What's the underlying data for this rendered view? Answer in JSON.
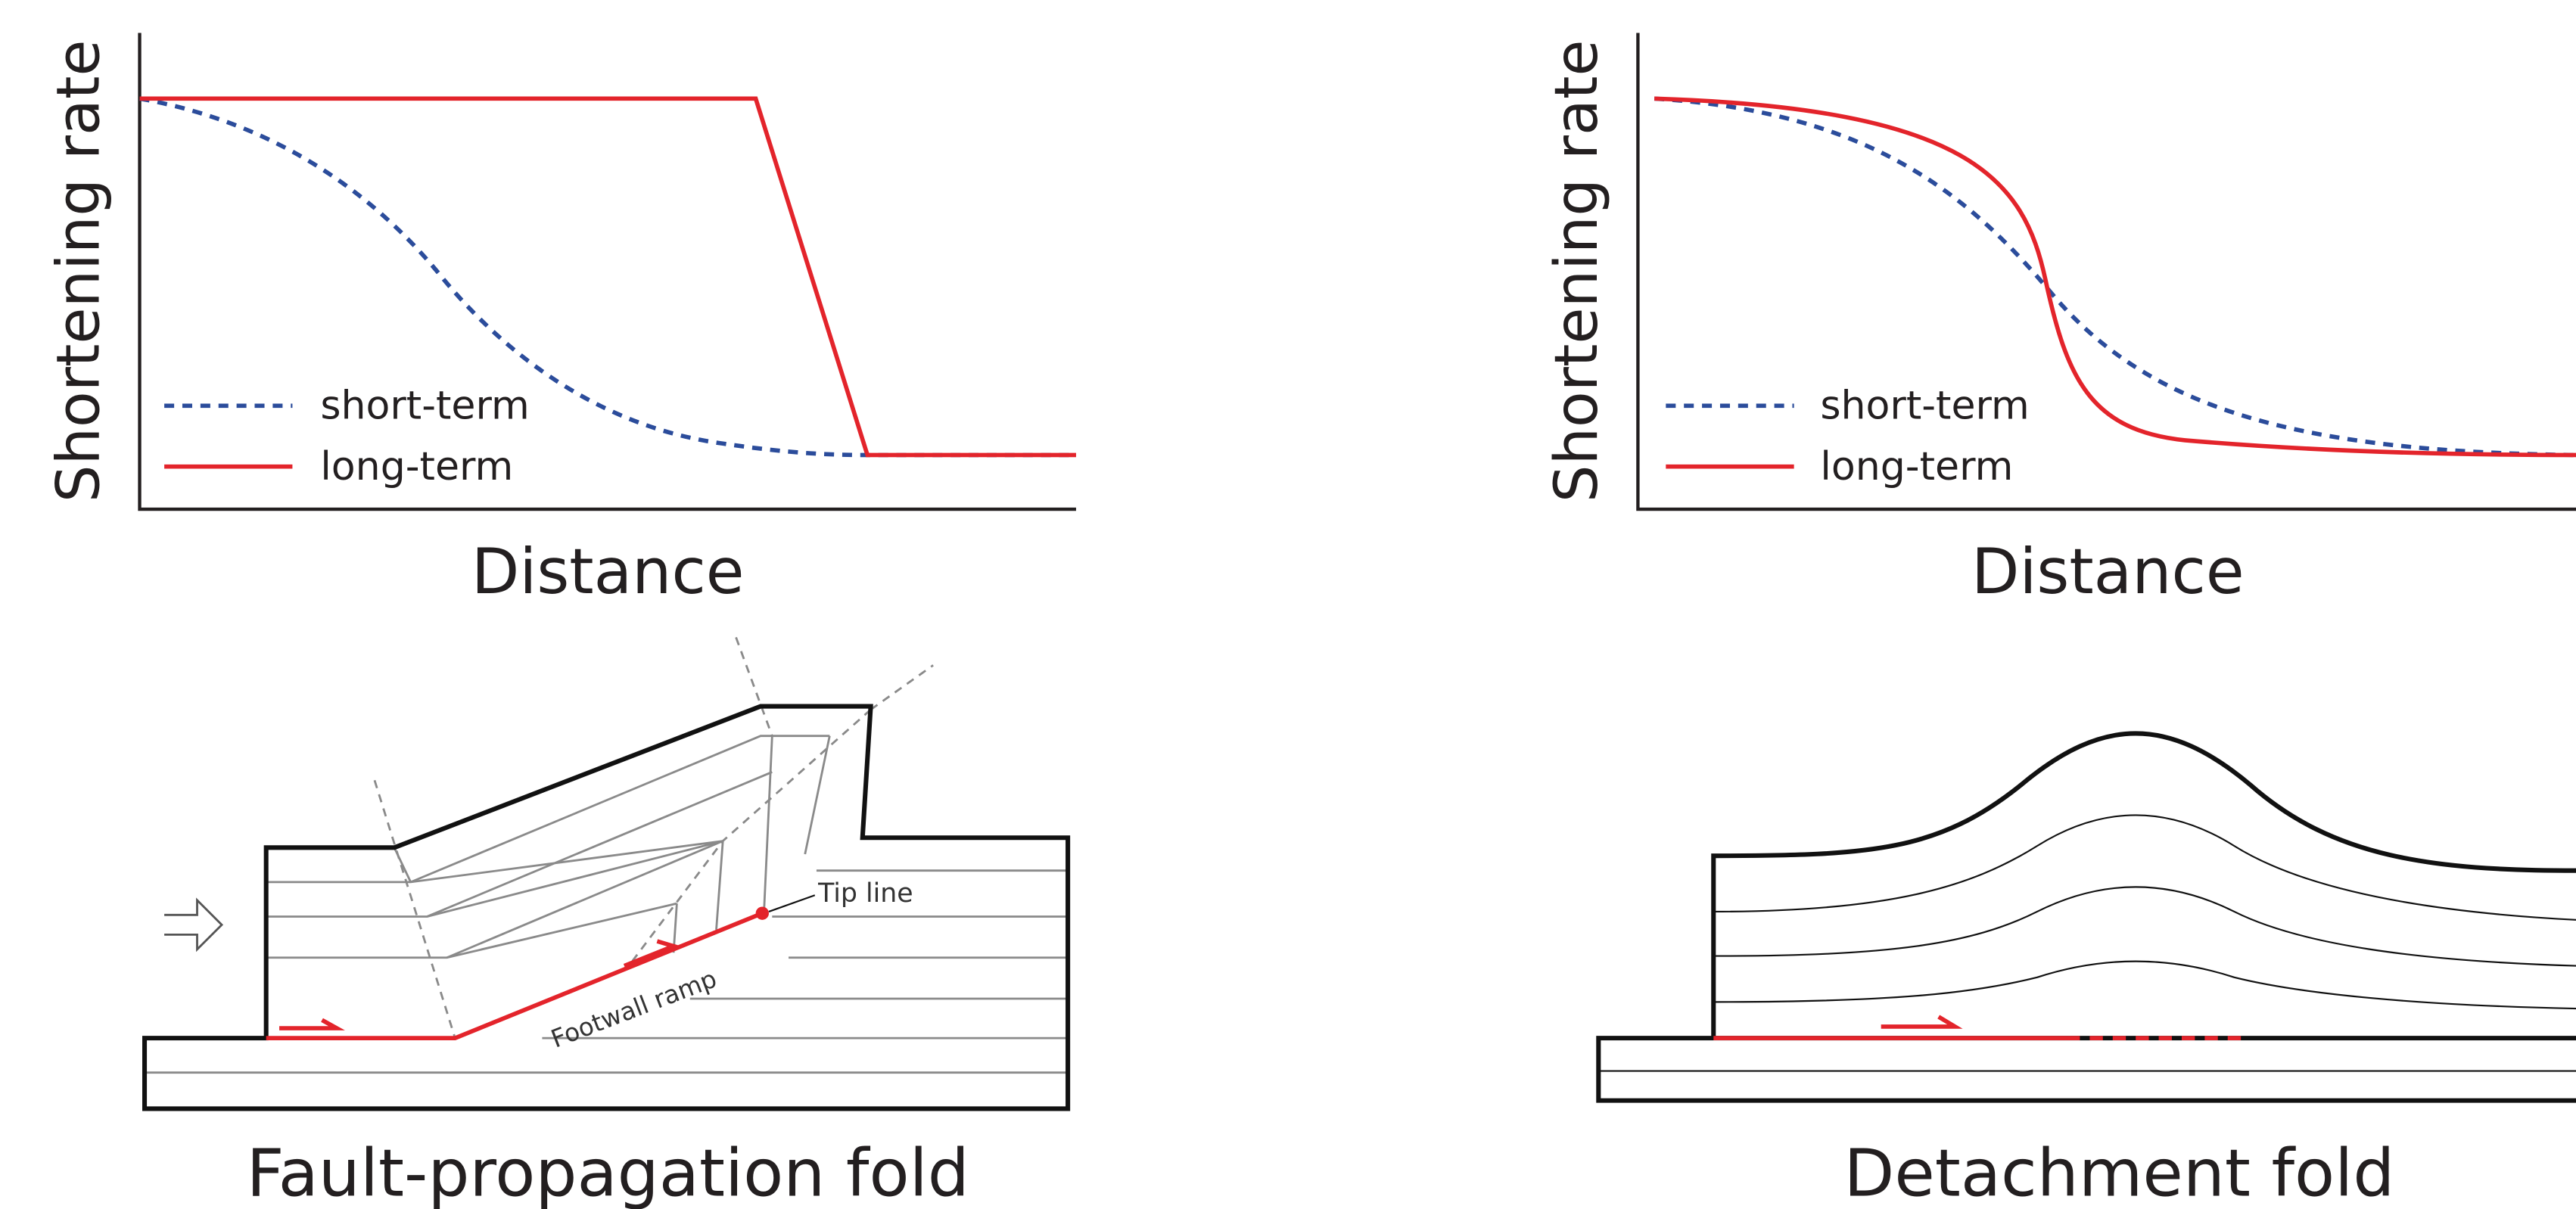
{
  "panels": [
    {
      "y_label": "Shortening rate",
      "x_label": "Distance",
      "legend": [
        "short-term",
        "long-term"
      ]
    },
    {
      "y_label": "Shortening rate",
      "x_label": "Distance",
      "legend": [
        "short-term",
        "long-term"
      ]
    }
  ],
  "sketches": [
    {
      "title": "Fault-propagation fold",
      "labels": [
        "Tip line",
        "Footwall ramp"
      ]
    },
    {
      "title": "Detachment fold"
    }
  ]
}
